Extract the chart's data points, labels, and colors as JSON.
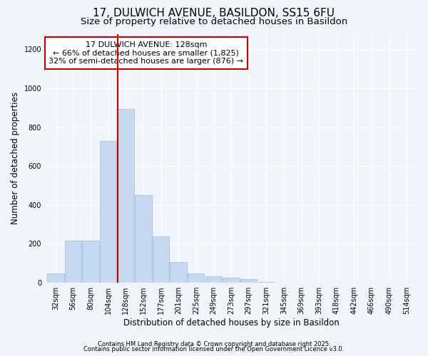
{
  "title1": "17, DULWICH AVENUE, BASILDON, SS15 6FU",
  "title2": "Size of property relative to detached houses in Basildon",
  "xlabel": "Distribution of detached houses by size in Basildon",
  "ylabel": "Number of detached properties",
  "categories": [
    "32sqm",
    "56sqm",
    "80sqm",
    "104sqm",
    "128sqm",
    "152sqm",
    "177sqm",
    "201sqm",
    "225sqm",
    "249sqm",
    "273sqm",
    "297sqm",
    "321sqm",
    "345sqm",
    "369sqm",
    "393sqm",
    "418sqm",
    "442sqm",
    "466sqm",
    "490sqm",
    "514sqm"
  ],
  "values": [
    48,
    215,
    218,
    730,
    895,
    450,
    238,
    105,
    48,
    35,
    25,
    17,
    5,
    0,
    0,
    0,
    0,
    0,
    0,
    0,
    0
  ],
  "bar_color": "#c6d9f1",
  "bar_edge_color": "#a8c0e0",
  "vline_index": 4,
  "vline_color": "#cc0000",
  "annotation_text": "17 DULWICH AVENUE: 128sqm\n← 66% of detached houses are smaller (1,825)\n32% of semi-detached houses are larger (876) →",
  "annotation_box_color": "#ffffff",
  "annotation_box_edge_color": "#cc0000",
  "ylim": [
    0,
    1280
  ],
  "yticks": [
    0,
    200,
    400,
    600,
    800,
    1000,
    1200
  ],
  "background_color": "#f0f4fb",
  "plot_bg_color": "#f0f4fb",
  "footer1": "Contains HM Land Registry data © Crown copyright and database right 2025.",
  "footer2": "Contains public sector information licensed under the Open Government Licence v3.0.",
  "title_fontsize": 11,
  "subtitle_fontsize": 9.5,
  "tick_fontsize": 7,
  "label_fontsize": 8.5,
  "annotation_fontsize": 8,
  "footer_fontsize": 6
}
